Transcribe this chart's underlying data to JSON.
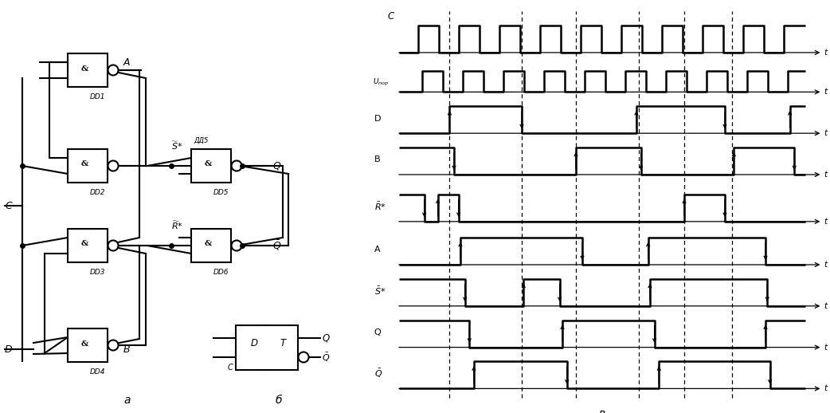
{
  "fig_width": 10.42,
  "fig_height": 5.18,
  "bg_color": "#ffffff",
  "lc": "#000000",
  "lw": 1.5,
  "lw_t": 1.8,
  "C_wave": [
    0.0,
    0.28,
    0.42,
    0.72,
    0.88,
    1.18,
    1.32,
    1.62,
    1.78,
    2.08,
    2.22,
    2.52,
    2.68,
    2.98,
    3.12,
    3.42,
    3.58,
    3.88,
    4.02,
    4.32,
    4.48,
    4.78,
    4.92,
    5.22,
    5.38,
    5.68,
    5.82,
    6.12,
    6.28,
    6.58,
    6.72,
    7.02,
    7.18,
    7.48,
    7.62,
    7.92,
    8.08,
    8.38,
    8.52,
    9.0
  ],
  "C_vals": [
    0,
    0,
    1,
    1,
    0,
    0,
    1,
    1,
    0,
    0,
    1,
    1,
    0,
    0,
    1,
    1,
    0,
    0,
    1,
    1,
    0,
    0,
    1,
    1,
    0,
    0,
    1,
    1,
    0,
    0,
    1,
    1,
    0,
    0,
    1,
    1,
    0,
    0,
    1,
    1
  ],
  "U_wave": [
    0.0,
    0.38,
    0.52,
    0.82,
    0.98,
    1.28,
    1.42,
    1.72,
    1.88,
    2.18,
    2.32,
    2.62,
    2.78,
    3.08,
    3.22,
    3.52,
    3.68,
    3.98,
    4.12,
    4.42,
    4.58,
    4.88,
    5.02,
    5.32,
    5.48,
    5.78,
    5.92,
    6.22,
    6.38,
    6.68,
    6.82,
    7.12,
    7.28,
    7.58,
    7.72,
    8.02,
    8.18,
    8.48,
    8.62,
    9.0
  ],
  "U_vals": [
    0,
    0,
    1,
    1,
    0,
    0,
    1,
    1,
    0,
    0,
    1,
    1,
    0,
    0,
    1,
    1,
    0,
    0,
    1,
    1,
    0,
    0,
    1,
    1,
    0,
    0,
    1,
    1,
    0,
    0,
    1,
    1,
    0,
    0,
    1,
    1,
    0,
    0,
    1,
    1
  ],
  "D_wave": [
    0.0,
    1.08,
    1.12,
    2.68,
    2.72,
    5.22,
    5.26,
    7.18,
    7.22,
    8.62,
    8.66,
    9.0
  ],
  "D_vals": [
    0,
    0,
    1,
    1,
    0,
    0,
    1,
    1,
    0,
    0,
    1,
    1
  ],
  "B_wave": [
    0.0,
    1.18,
    1.22,
    3.88,
    3.92,
    5.32,
    5.36,
    7.38,
    7.42,
    8.72,
    8.76,
    9.0
  ],
  "B_vals": [
    1,
    1,
    0,
    0,
    1,
    1,
    0,
    0,
    1,
    1,
    0,
    0
  ],
  "Rbar_wave": [
    0.0,
    0.52,
    0.56,
    0.82,
    0.86,
    1.28,
    1.32,
    1.72,
    6.28,
    6.32,
    7.18,
    7.22,
    9.0
  ],
  "Rbar_vals": [
    1,
    1,
    0,
    0,
    1,
    1,
    0,
    0,
    0,
    1,
    1,
    0,
    0
  ],
  "A_wave": [
    0.0,
    1.32,
    1.36,
    4.02,
    4.06,
    5.48,
    5.52,
    8.08,
    8.12,
    9.0
  ],
  "A_vals": [
    0,
    0,
    1,
    1,
    0,
    0,
    1,
    1,
    0,
    0
  ],
  "Sbar_wave": [
    0.0,
    1.42,
    1.46,
    2.72,
    2.76,
    3.52,
    3.56,
    5.52,
    5.56,
    8.12,
    8.16,
    9.0
  ],
  "Sbar_vals": [
    1,
    1,
    0,
    0,
    1,
    1,
    0,
    0,
    1,
    1,
    0,
    0
  ],
  "Q_wave": [
    0.0,
    1.52,
    1.56,
    3.58,
    3.62,
    5.62,
    5.66,
    8.08,
    8.12,
    9.0
  ],
  "Q_vals": [
    1,
    1,
    0,
    0,
    1,
    1,
    0,
    0,
    1,
    1
  ],
  "Qbar_wave": [
    0.0,
    1.62,
    1.66,
    3.68,
    3.72,
    5.72,
    5.76,
    8.18,
    8.22,
    9.0
  ],
  "Qbar_vals": [
    0,
    0,
    1,
    1,
    0,
    0,
    1,
    1,
    0,
    0
  ],
  "signals": [
    "C",
    "U_por",
    "D",
    "B",
    "R_bar",
    "A",
    "S_bar",
    "Q",
    "Q_bar"
  ],
  "y_positions": [
    9.1,
    8.05,
    6.95,
    5.85,
    4.6,
    3.45,
    2.35,
    1.25,
    0.15
  ],
  "amplitude": 0.72,
  "u_amplitude": 0.55,
  "dashed_x": [
    1.12,
    2.72,
    3.92,
    5.32,
    6.32,
    7.38
  ]
}
